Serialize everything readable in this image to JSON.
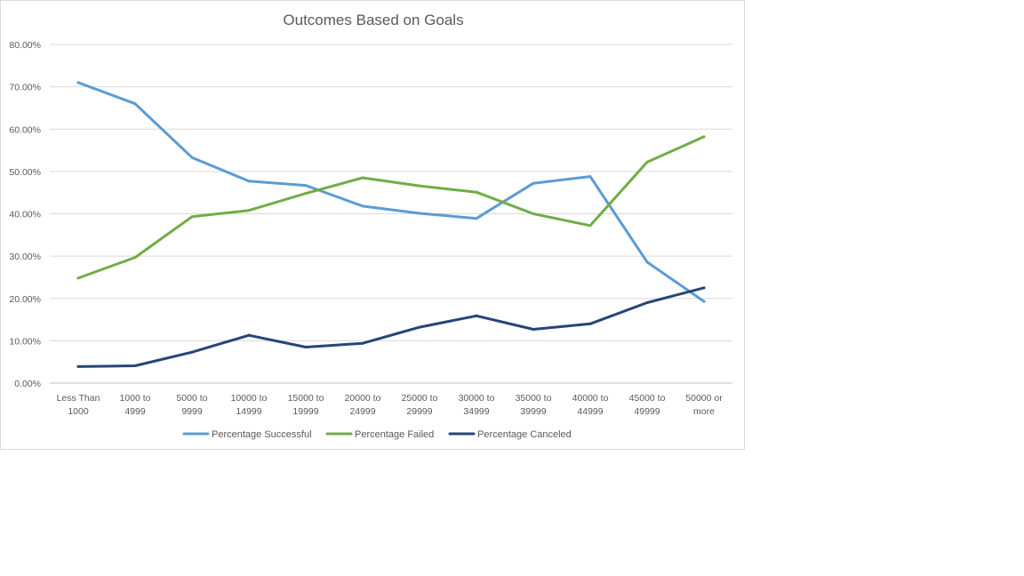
{
  "chart_data": {
    "type": "line",
    "title": "Outcomes Based on Goals",
    "xlabel": "",
    "ylabel": "",
    "categories": [
      [
        "Less Than",
        "1000"
      ],
      [
        "1000 to",
        "4999"
      ],
      [
        "5000 to",
        "9999"
      ],
      [
        "10000 to",
        "14999"
      ],
      [
        "15000 to",
        "19999"
      ],
      [
        "20000 to",
        "24999"
      ],
      [
        "25000 to",
        "29999"
      ],
      [
        "30000 to",
        "34999"
      ],
      [
        "35000 to",
        "39999"
      ],
      [
        "40000 to",
        "44999"
      ],
      [
        "45000 to",
        "49999"
      ],
      [
        "50000 or",
        "more"
      ]
    ],
    "ylim": [
      0,
      0.8
    ],
    "yticks": [
      {
        "value": 0.8,
        "label": "80.00%"
      },
      {
        "value": 0.7,
        "label": "70.00%"
      },
      {
        "value": 0.6,
        "label": "60.00%"
      },
      {
        "value": 0.5,
        "label": "50.00%"
      },
      {
        "value": 0.4,
        "label": "40.00%"
      },
      {
        "value": 0.3,
        "label": "30.00%"
      },
      {
        "value": 0.2,
        "label": "20.00%"
      },
      {
        "value": 0.1,
        "label": "10.00%"
      },
      {
        "value": 0.0,
        "label": "0.00%"
      }
    ],
    "grid": true,
    "legend_position": "bottom",
    "series": [
      {
        "name": "Percentage Successful",
        "color": "#5b9bd5",
        "values": [
          0.71,
          0.66,
          0.533,
          0.477,
          0.467,
          0.418,
          0.401,
          0.389,
          0.472,
          0.488,
          0.286,
          0.193
        ]
      },
      {
        "name": "Percentage Failed",
        "color": "#70ad47",
        "values": [
          0.248,
          0.297,
          0.393,
          0.408,
          0.448,
          0.485,
          0.466,
          0.451,
          0.4,
          0.372,
          0.522,
          0.582
        ]
      },
      {
        "name": "Percentage Canceled",
        "color": "#264478",
        "values": [
          0.039,
          0.041,
          0.073,
          0.113,
          0.085,
          0.094,
          0.132,
          0.159,
          0.127,
          0.14,
          0.19,
          0.225
        ]
      }
    ]
  }
}
